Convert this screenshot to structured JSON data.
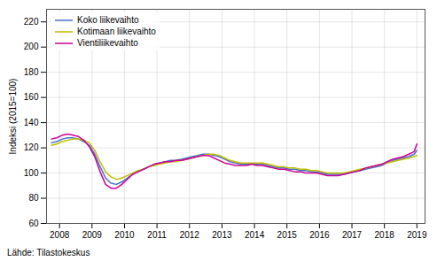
{
  "chart_data": {
    "type": "line",
    "ylabel": "Indeksi (2015=100)",
    "annotations": [
      "Lähde: Tilastokeskus"
    ],
    "x": [
      2007.75,
      2007.917,
      2008.083,
      2008.25,
      2008.417,
      2008.583,
      2008.75,
      2008.917,
      2009.083,
      2009.25,
      2009.417,
      2009.583,
      2009.75,
      2009.917,
      2010.083,
      2010.25,
      2010.417,
      2010.583,
      2010.75,
      2010.917,
      2011.083,
      2011.25,
      2011.417,
      2011.583,
      2011.75,
      2011.917,
      2012.083,
      2012.25,
      2012.417,
      2012.583,
      2012.75,
      2012.917,
      2013.083,
      2013.25,
      2013.417,
      2013.583,
      2013.75,
      2013.917,
      2014.083,
      2014.25,
      2014.417,
      2014.583,
      2014.75,
      2014.917,
      2015.083,
      2015.25,
      2015.417,
      2015.583,
      2015.75,
      2015.917,
      2016.083,
      2016.25,
      2016.417,
      2016.583,
      2016.75,
      2016.917,
      2017.083,
      2017.25,
      2017.417,
      2017.583,
      2017.75,
      2017.917,
      2018.083,
      2018.25,
      2018.417,
      2018.583,
      2018.75,
      2018.917,
      2019.0
    ],
    "series": [
      {
        "name": "Koko liikevaihto",
        "color": "#4472C4",
        "values": [
          124,
          125,
          127,
          128,
          128,
          127,
          125,
          122,
          115,
          105,
          96,
          92,
          91,
          93,
          96,
          99,
          101,
          103,
          105,
          107,
          108,
          109,
          110,
          110,
          111,
          112,
          113,
          114,
          115,
          115,
          114,
          113,
          111,
          109,
          108,
          107,
          107,
          107,
          107,
          107,
          106,
          105,
          104,
          104,
          103,
          103,
          102,
          102,
          101,
          101,
          100,
          99,
          99,
          99,
          99,
          100,
          101,
          102,
          103,
          104,
          105,
          106,
          108,
          110,
          111,
          112,
          113,
          115,
          118
        ]
      },
      {
        "name": "Kotimaan liikevaihto",
        "color": "#BFBF00",
        "values": [
          122,
          123,
          125,
          126,
          127,
          127,
          126,
          124,
          118,
          109,
          101,
          97,
          95,
          96,
          98,
          100,
          102,
          103,
          105,
          106,
          107,
          108,
          109,
          109,
          110,
          111,
          112,
          113,
          114,
          115,
          115,
          114,
          112,
          110,
          109,
          108,
          108,
          108,
          108,
          108,
          107,
          106,
          105,
          105,
          104,
          104,
          103,
          103,
          102,
          102,
          101,
          100,
          100,
          100,
          100,
          101,
          102,
          103,
          104,
          105,
          106,
          107,
          108,
          109,
          110,
          111,
          112,
          113,
          114
        ]
      },
      {
        "name": "Vientiliikevaihto",
        "color": "#CC0099",
        "values": [
          127,
          128,
          130,
          131,
          130,
          129,
          126,
          121,
          113,
          101,
          91,
          88,
          88,
          91,
          95,
          99,
          101,
          103,
          105,
          107,
          108,
          109,
          109,
          110,
          110,
          111,
          112,
          113,
          114,
          114,
          112,
          110,
          108,
          107,
          106,
          106,
          106,
          107,
          106,
          106,
          105,
          104,
          103,
          103,
          102,
          101,
          101,
          100,
          100,
          100,
          99,
          98,
          98,
          98,
          99,
          100,
          101,
          102,
          104,
          105,
          106,
          107,
          109,
          111,
          112,
          113,
          115,
          117,
          123
        ]
      }
    ],
    "xlim": [
      2007.6,
      2019.25
    ],
    "xticks": [
      2008,
      2009,
      2010,
      2011,
      2012,
      2013,
      2014,
      2015,
      2016,
      2017,
      2018,
      2019
    ],
    "ylim": [
      60,
      230
    ],
    "yticks": [
      60,
      80,
      100,
      120,
      140,
      160,
      180,
      200,
      220
    ],
    "grid": true,
    "legend": "upper left"
  }
}
